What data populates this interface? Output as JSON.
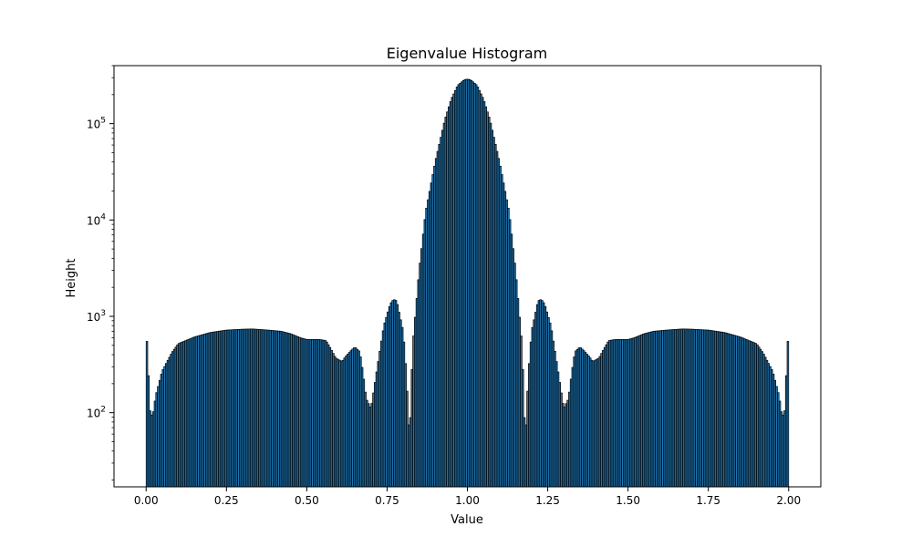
{
  "chart_data": {
    "type": "bar",
    "title": "Eigenvalue Histogram",
    "xlabel": "Value",
    "ylabel": "Height",
    "xlim": [
      -0.1,
      2.1
    ],
    "ylim": [
      17,
      400000
    ],
    "yscale": "log",
    "grid": false,
    "bar_color": "#1f77b4",
    "edge_color": "#000000",
    "x_ticks": [
      {
        "value": 0.0,
        "label": "0.00"
      },
      {
        "value": 0.25,
        "label": "0.25"
      },
      {
        "value": 0.5,
        "label": "0.50"
      },
      {
        "value": 0.75,
        "label": "0.75"
      },
      {
        "value": 1.0,
        "label": "1.00"
      },
      {
        "value": 1.25,
        "label": "1.25"
      },
      {
        "value": 1.5,
        "label": "1.50"
      },
      {
        "value": 1.75,
        "label": "1.75"
      },
      {
        "value": 2.0,
        "label": "2.00"
      }
    ],
    "y_ticks": [
      {
        "value": 100,
        "base": "10",
        "exp": "2"
      },
      {
        "value": 1000,
        "base": "10",
        "exp": "3"
      },
      {
        "value": 10000,
        "base": "10",
        "exp": "4"
      },
      {
        "value": 100000,
        "base": "10",
        "exp": "5"
      }
    ],
    "bins": {
      "start": 0.0,
      "end": 2.0,
      "count": 400,
      "profile_x": [
        0.0,
        0.0049,
        0.01,
        0.02,
        0.03,
        0.05,
        0.08,
        0.1,
        0.15,
        0.2,
        0.25,
        0.3,
        0.33,
        0.38,
        0.42,
        0.45,
        0.48,
        0.5,
        0.54,
        0.56,
        0.575,
        0.59,
        0.61,
        0.62,
        0.64,
        0.65,
        0.665,
        0.675,
        0.685,
        0.7,
        0.72,
        0.74,
        0.76,
        0.77,
        0.78,
        0.8,
        0.81,
        0.82,
        0.83,
        0.85,
        0.87,
        0.9,
        0.93,
        0.95,
        0.97,
        0.99,
        1.0
      ],
      "profile_y": [
        550,
        550,
        110,
        90,
        150,
        270,
        420,
        520,
        610,
        680,
        720,
        735,
        740,
        720,
        700,
        660,
        600,
        575,
        575,
        560,
        460,
        370,
        340,
        380,
        450,
        480,
        430,
        260,
        140,
        110,
        300,
        800,
        1350,
        1500,
        1450,
        700,
        250,
        50,
        500,
        3000,
        12000,
        40000,
        110000,
        180000,
        250000,
        285000,
        290000
      ]
    }
  }
}
